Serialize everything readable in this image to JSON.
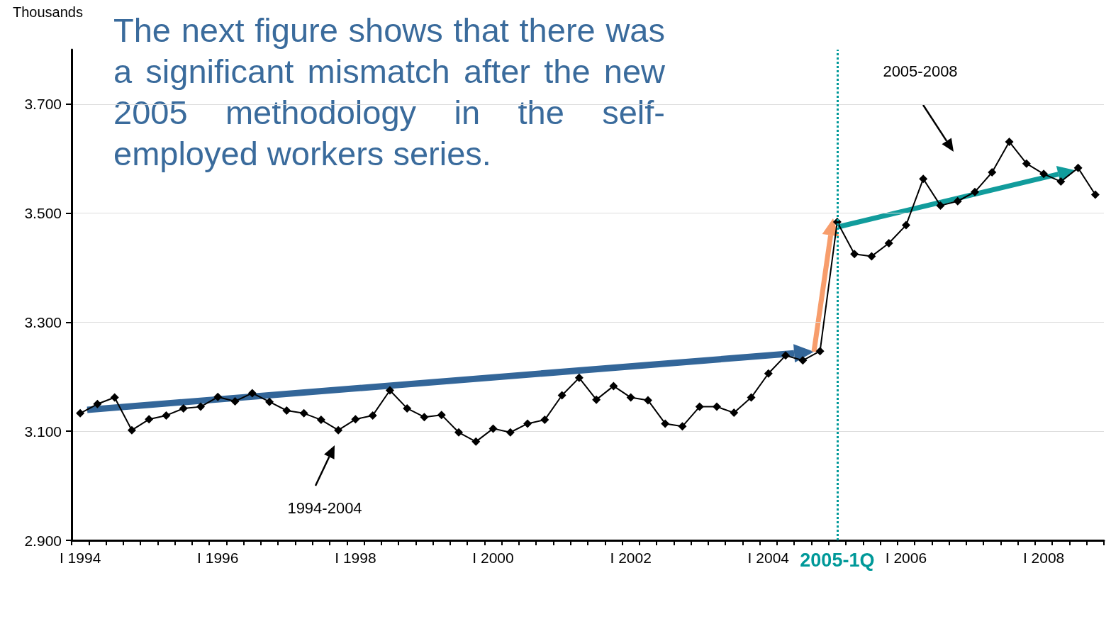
{
  "chart_data": {
    "type": "line",
    "title": "The next figure shows that there was a significant mismatch after the new 2005 methodology in the self-employed workers series.",
    "ylabel": "Thousands",
    "categories": [
      "I 1994",
      null,
      null,
      null,
      null,
      null,
      null,
      null,
      "I 1996",
      null,
      null,
      null,
      null,
      null,
      null,
      null,
      "I 1998",
      null,
      null,
      null,
      null,
      null,
      null,
      null,
      "I 2000",
      null,
      null,
      null,
      null,
      null,
      null,
      null,
      "I 2002",
      null,
      null,
      null,
      null,
      null,
      null,
      null,
      "I 2004",
      null,
      null,
      null,
      "2005-1Q",
      null,
      null,
      null,
      "I 2006",
      null,
      null,
      null,
      null,
      null,
      null,
      null,
      "I 2008",
      null,
      null,
      null
    ],
    "series": [
      {
        "color": "#000000",
        "values": [
          3133,
          3150,
          3162,
          3102,
          3122,
          3129,
          3142,
          3145,
          3163,
          3155,
          3170,
          3154,
          3138,
          3133,
          3121,
          3102,
          3122,
          3129,
          3175,
          3142,
          3126,
          3130,
          3098,
          3081,
          3105,
          3098,
          3114,
          3121,
          3166,
          3198,
          3158,
          3183,
          3162,
          3157,
          3114,
          3109,
          3145,
          3145,
          3134,
          3162,
          3206,
          3239,
          3230,
          3247,
          3484,
          3425,
          3421,
          3445,
          3478,
          3563,
          3514,
          3522,
          3539,
          3575,
          3631,
          3591,
          3572,
          3558,
          3583,
          3534
        ]
      }
    ],
    "ylim": [
      2900,
      3800
    ],
    "yticks": [
      {
        "value": 2900,
        "label": "2.900"
      },
      {
        "value": 3100,
        "label": "3.100"
      },
      {
        "value": 3300,
        "label": "3.300"
      },
      {
        "value": 3500,
        "label": "3.500"
      },
      {
        "value": 3700,
        "label": "3.700"
      }
    ],
    "ref_lines": [
      {
        "axis": "x",
        "value": "2005-1Q",
        "color": "#009999",
        "line_style": "dotted"
      }
    ],
    "annotations": [
      "1994-2004",
      "2005-2008"
    ],
    "grid": "y",
    "marker": "diamond",
    "line_style": "solid"
  }
}
